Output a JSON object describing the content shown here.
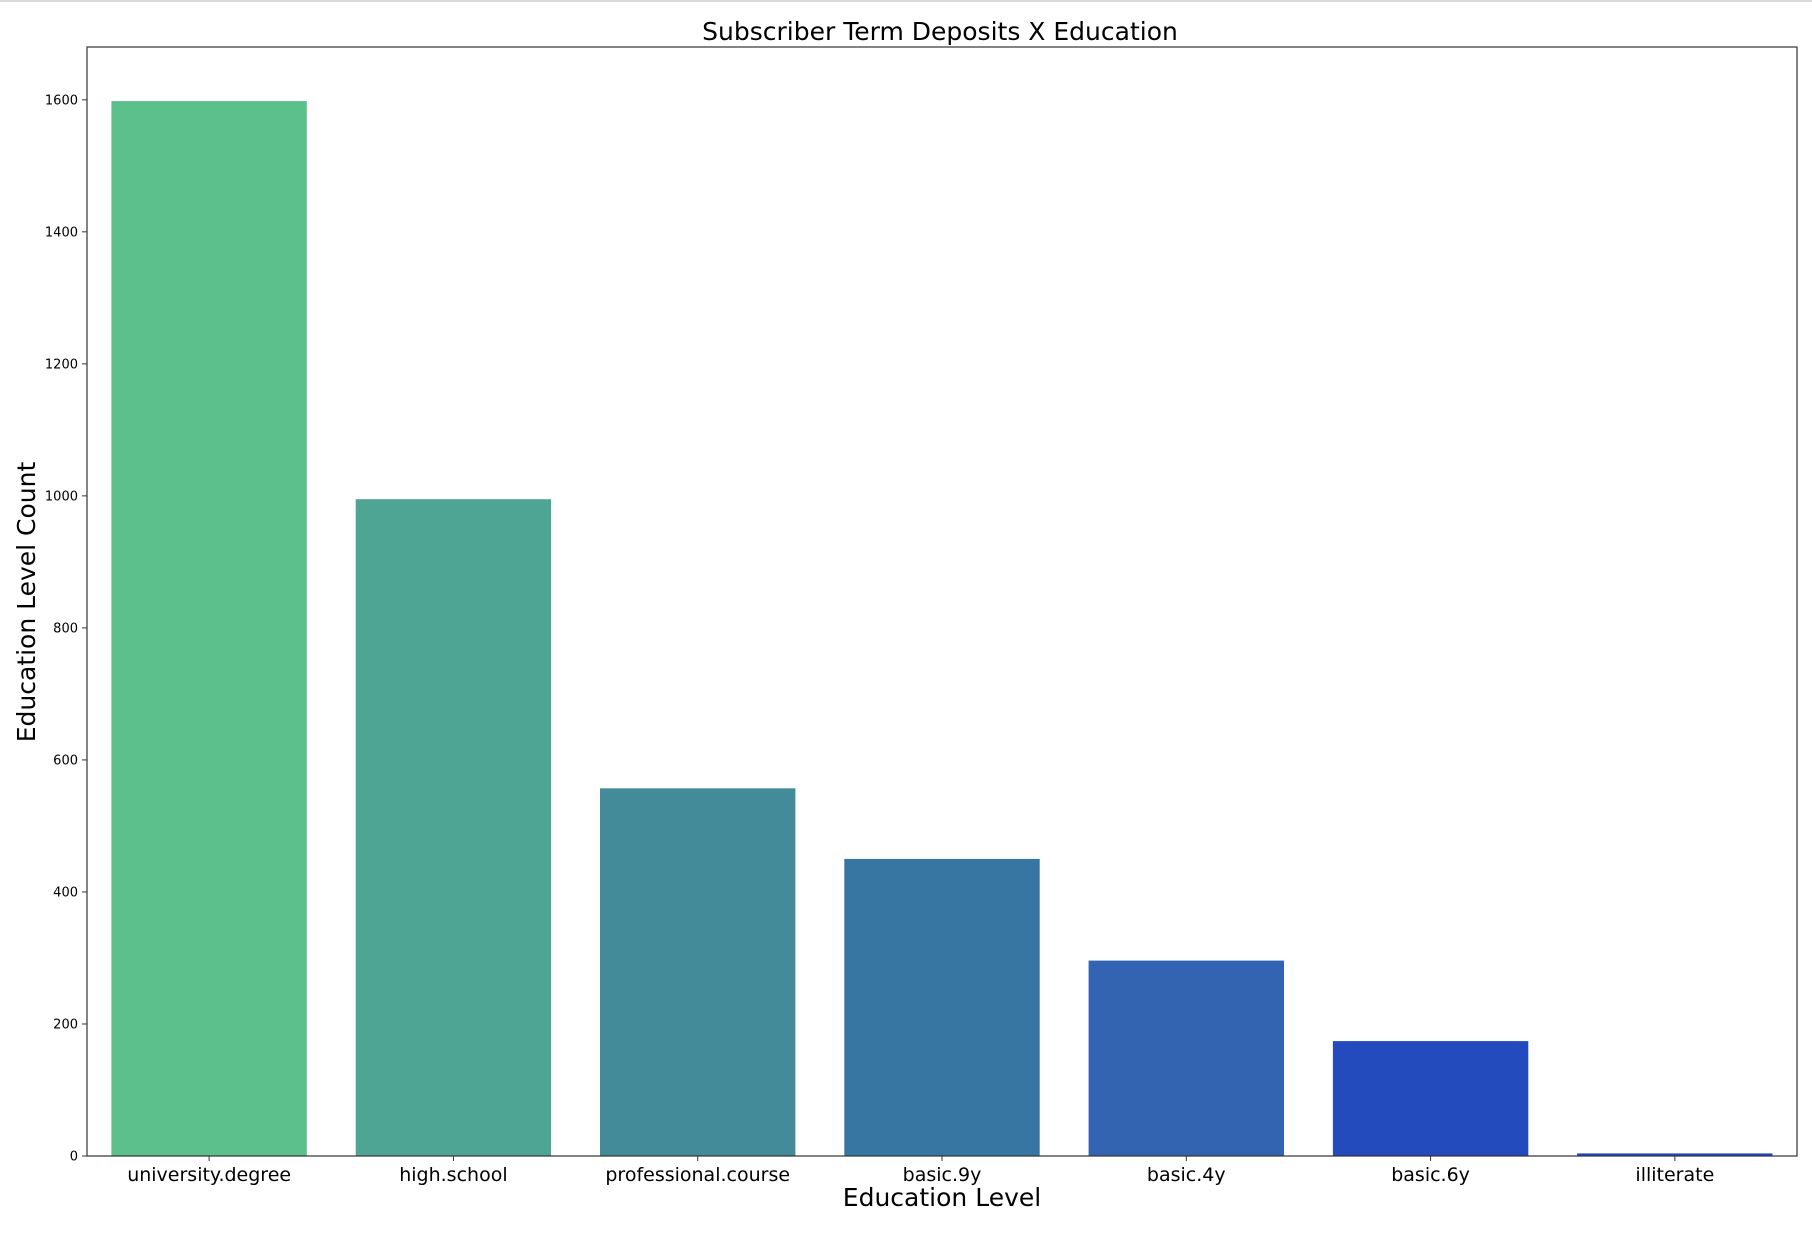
{
  "chart_data": {
    "type": "bar",
    "title": "Subscriber Term Deposits X Education",
    "xlabel": "Education Level",
    "ylabel": "Education Level Count",
    "categories": [
      "university.degree",
      "high.school",
      "professional.course",
      "basic.9y",
      "basic.4y",
      "basic.6y",
      "illiterate"
    ],
    "values": [
      1598,
      995,
      557,
      450,
      296,
      174,
      4
    ],
    "colors": [
      "#5bc08c",
      "#4ea594",
      "#438b98",
      "#3775a3",
      "#3264b2",
      "#234bbd",
      "#2246c0"
    ],
    "ylim": [
      0,
      1680
    ],
    "yticks": [
      0,
      200,
      400,
      600,
      800,
      1000,
      1200,
      1400,
      1600
    ],
    "grid": false,
    "legend": "none"
  }
}
